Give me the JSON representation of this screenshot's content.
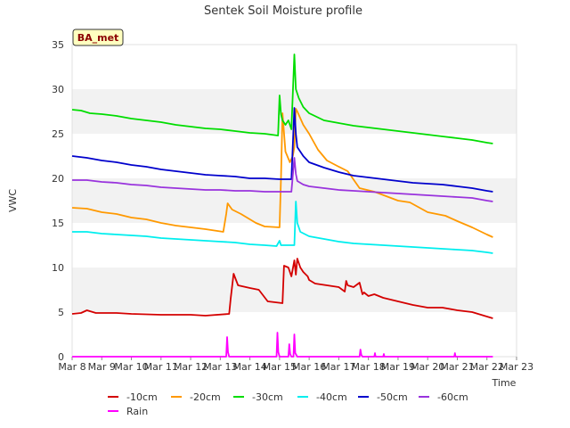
{
  "chart_data": {
    "type": "line",
    "title": "Sentek Soil Moisture profile",
    "xlabel": "Time",
    "ylabel": "VWC",
    "annotation": "BA_met",
    "x_ticks": [
      "Mar 8",
      "Mar 9",
      "Mar 10",
      "Mar 11",
      "Mar 12",
      "Mar 13",
      "Mar 14",
      "Mar 15",
      "Mar 16",
      "Mar 17",
      "Mar 18",
      "Mar 19",
      "Mar 20",
      "Mar 21",
      "Mar 22",
      "Mar 23"
    ],
    "xlim": [
      0,
      15
    ],
    "ylim": [
      0,
      35
    ],
    "y_ticks": [
      0,
      5,
      10,
      15,
      20,
      25,
      30,
      35
    ],
    "grid": "horizontal-bands",
    "legend_position": "bottom",
    "series": [
      {
        "name": "-10cm",
        "color": "#d40000",
        "x": [
          0,
          0.3,
          0.5,
          0.8,
          1.5,
          2.0,
          3.0,
          4.0,
          4.5,
          5.3,
          5.35,
          5.45,
          5.6,
          6.0,
          6.3,
          6.6,
          7.1,
          7.15,
          7.3,
          7.4,
          7.5,
          7.55,
          7.6,
          7.7,
          7.8,
          7.95,
          8.0,
          8.2,
          8.6,
          9.0,
          9.2,
          9.25,
          9.3,
          9.5,
          9.7,
          9.8,
          9.85,
          10.0,
          10.2,
          10.5,
          11.0,
          11.5,
          12.0,
          12.5,
          13.0,
          13.5,
          14.0,
          14.2
        ],
        "y": [
          4.8,
          4.9,
          5.2,
          4.9,
          4.9,
          4.8,
          4.7,
          4.7,
          4.6,
          4.8,
          6.5,
          9.3,
          8.0,
          7.7,
          7.5,
          6.2,
          6.0,
          10.2,
          10.0,
          9.0,
          10.8,
          9.2,
          11.0,
          10.0,
          9.5,
          9.0,
          8.6,
          8.2,
          8.0,
          7.8,
          7.3,
          8.5,
          8.0,
          7.8,
          8.3,
          7.0,
          7.2,
          6.8,
          7.0,
          6.6,
          6.2,
          5.8,
          5.5,
          5.5,
          5.2,
          5.0,
          4.5,
          4.3
        ]
      },
      {
        "name": "-20cm",
        "color": "#ff9900",
        "x": [
          0,
          0.5,
          1.0,
          1.5,
          2.0,
          2.5,
          3.0,
          3.5,
          4.0,
          4.5,
          5.1,
          5.2,
          5.25,
          5.4,
          5.7,
          6.2,
          6.5,
          7.0,
          7.05,
          7.1,
          7.2,
          7.35,
          7.45,
          7.5,
          7.55,
          7.6,
          7.8,
          8.0,
          8.3,
          8.6,
          9.0,
          9.3,
          9.7,
          10.2,
          10.6,
          11.0,
          11.4,
          12.0,
          12.6,
          13.0,
          13.5,
          14.0,
          14.2
        ],
        "y": [
          16.7,
          16.6,
          16.2,
          16.0,
          15.6,
          15.4,
          15.0,
          14.7,
          14.5,
          14.3,
          14.0,
          16.0,
          17.2,
          16.5,
          16.0,
          15.0,
          14.6,
          14.5,
          20.0,
          27.3,
          23.0,
          21.8,
          22.5,
          23.5,
          27.8,
          27.5,
          26.0,
          25.0,
          23.2,
          22.0,
          21.3,
          20.8,
          18.9,
          18.5,
          18.0,
          17.5,
          17.3,
          16.2,
          15.8,
          15.2,
          14.5,
          13.7,
          13.4
        ]
      },
      {
        "name": "-30cm",
        "color": "#00dd00",
        "x": [
          0,
          0.3,
          0.6,
          1.0,
          1.5,
          2.0,
          2.5,
          3.0,
          3.5,
          4.0,
          4.5,
          5.0,
          5.5,
          6.0,
          6.5,
          6.95,
          7.0,
          7.05,
          7.1,
          7.2,
          7.3,
          7.4,
          7.5,
          7.55,
          7.65,
          7.8,
          8.0,
          8.5,
          9.0,
          9.5,
          10.0,
          10.5,
          11.0,
          11.5,
          12.0,
          12.5,
          13.0,
          13.5,
          14.0,
          14.2
        ],
        "y": [
          27.7,
          27.6,
          27.3,
          27.2,
          27.0,
          26.7,
          26.5,
          26.3,
          26.0,
          25.8,
          25.6,
          25.5,
          25.3,
          25.1,
          25.0,
          24.8,
          29.3,
          27.2,
          26.5,
          26.0,
          26.5,
          25.5,
          33.9,
          30.0,
          29.0,
          28.0,
          27.3,
          26.5,
          26.2,
          25.9,
          25.7,
          25.5,
          25.3,
          25.1,
          24.9,
          24.7,
          24.5,
          24.3,
          24.0,
          23.9
        ]
      },
      {
        "name": "-40cm",
        "color": "#00eeee",
        "x": [
          0,
          0.5,
          1.0,
          1.5,
          2.0,
          2.5,
          3.0,
          3.5,
          4.0,
          4.5,
          5.0,
          5.5,
          6.0,
          6.5,
          6.9,
          7.0,
          7.05,
          7.1,
          7.4,
          7.5,
          7.55,
          7.6,
          7.7,
          8.0,
          8.5,
          9.0,
          9.5,
          10.0,
          10.5,
          11.0,
          11.5,
          12.0,
          12.5,
          13.0,
          13.5,
          14.0,
          14.2
        ],
        "y": [
          14.0,
          14.0,
          13.8,
          13.7,
          13.6,
          13.5,
          13.3,
          13.2,
          13.1,
          13.0,
          12.9,
          12.8,
          12.6,
          12.5,
          12.4,
          13.0,
          12.5,
          12.5,
          12.5,
          12.5,
          17.4,
          15.0,
          14.0,
          13.5,
          13.2,
          12.9,
          12.7,
          12.6,
          12.5,
          12.4,
          12.3,
          12.2,
          12.1,
          12.0,
          11.9,
          11.7,
          11.6
        ]
      },
      {
        "name": "-50cm",
        "color": "#0000cc",
        "x": [
          0,
          0.5,
          1.0,
          1.5,
          2.0,
          2.5,
          3.0,
          3.5,
          4.0,
          4.5,
          5.0,
          5.5,
          6.0,
          6.5,
          7.0,
          7.4,
          7.5,
          7.55,
          7.6,
          7.8,
          8.0,
          8.5,
          9.0,
          9.5,
          10.0,
          10.5,
          11.0,
          11.5,
          12.0,
          12.5,
          13.0,
          13.5,
          14.0,
          14.2
        ],
        "y": [
          22.5,
          22.3,
          22.0,
          21.8,
          21.5,
          21.3,
          21.0,
          20.8,
          20.6,
          20.4,
          20.3,
          20.2,
          20.0,
          20.0,
          19.9,
          19.9,
          27.9,
          25.0,
          23.5,
          22.5,
          21.8,
          21.2,
          20.7,
          20.3,
          20.1,
          19.9,
          19.7,
          19.5,
          19.4,
          19.3,
          19.1,
          18.9,
          18.6,
          18.5
        ]
      },
      {
        "name": "-60cm",
        "color": "#9933dd",
        "x": [
          0,
          0.5,
          1.0,
          1.5,
          2.0,
          2.5,
          3.0,
          3.5,
          4.0,
          4.5,
          5.0,
          5.5,
          6.0,
          6.5,
          7.0,
          7.4,
          7.5,
          7.55,
          7.6,
          7.8,
          8.0,
          8.5,
          9.0,
          9.5,
          10.0,
          10.5,
          11.0,
          11.5,
          12.0,
          12.5,
          13.0,
          13.5,
          14.0,
          14.2
        ],
        "y": [
          19.8,
          19.8,
          19.6,
          19.5,
          19.3,
          19.2,
          19.0,
          18.9,
          18.8,
          18.7,
          18.7,
          18.6,
          18.6,
          18.5,
          18.5,
          18.5,
          22.3,
          20.5,
          19.7,
          19.3,
          19.1,
          18.9,
          18.7,
          18.6,
          18.5,
          18.4,
          18.3,
          18.2,
          18.1,
          18.0,
          17.9,
          17.8,
          17.5,
          17.4
        ]
      },
      {
        "name": "Rain",
        "color": "#ff00ff",
        "x": [
          0,
          5.2,
          5.23,
          5.26,
          5.3,
          6.9,
          6.93,
          6.96,
          7.0,
          7.3,
          7.33,
          7.36,
          7.4,
          7.47,
          7.5,
          7.53,
          7.6,
          9.7,
          9.73,
          9.76,
          9.8,
          10.2,
          10.22,
          10.24,
          10.3,
          10.5,
          10.52,
          10.54,
          10.6,
          12.9,
          12.92,
          12.94,
          13.0,
          14.2
        ],
        "y": [
          0,
          0,
          2.2,
          0.5,
          0,
          0,
          2.7,
          0.5,
          0,
          0,
          1.4,
          0.3,
          0,
          0,
          2.5,
          0.4,
          0,
          0,
          0.8,
          0.2,
          0,
          0,
          0.4,
          0,
          0,
          0,
          0.3,
          0,
          0,
          0,
          0.4,
          0,
          0,
          0
        ]
      }
    ]
  }
}
